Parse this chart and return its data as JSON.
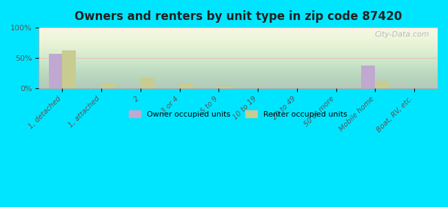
{
  "title": "Owners and renters by unit type in zip code 87420",
  "categories": [
    "1, detached",
    "1, attached",
    "2",
    "3 or 4",
    "5 to 9",
    "10 to 19",
    "20 to 49",
    "50 or more",
    "Mobile home",
    "Boat, RV, etc."
  ],
  "owner_values": [
    57,
    0,
    0,
    0,
    0,
    0,
    0,
    0,
    38,
    0
  ],
  "renter_values": [
    63,
    8,
    17,
    8,
    3,
    0,
    0,
    0,
    13,
    0
  ],
  "owner_color": "#c0a8d0",
  "renter_color": "#c8cc90",
  "background_outer": "#00e5ff",
  "background_inner_top": "#e8f0e0",
  "background_inner_bottom": "#f0f5e8",
  "grid_color": "#ff9999",
  "yticks": [
    0,
    50,
    100
  ],
  "ytick_labels": [
    "0%",
    "50%",
    "100%"
  ],
  "ylim": [
    0,
    100
  ],
  "bar_width": 0.35,
  "watermark": "City-Data.com",
  "legend_owner": "Owner occupied units",
  "legend_renter": "Renter occupied units"
}
